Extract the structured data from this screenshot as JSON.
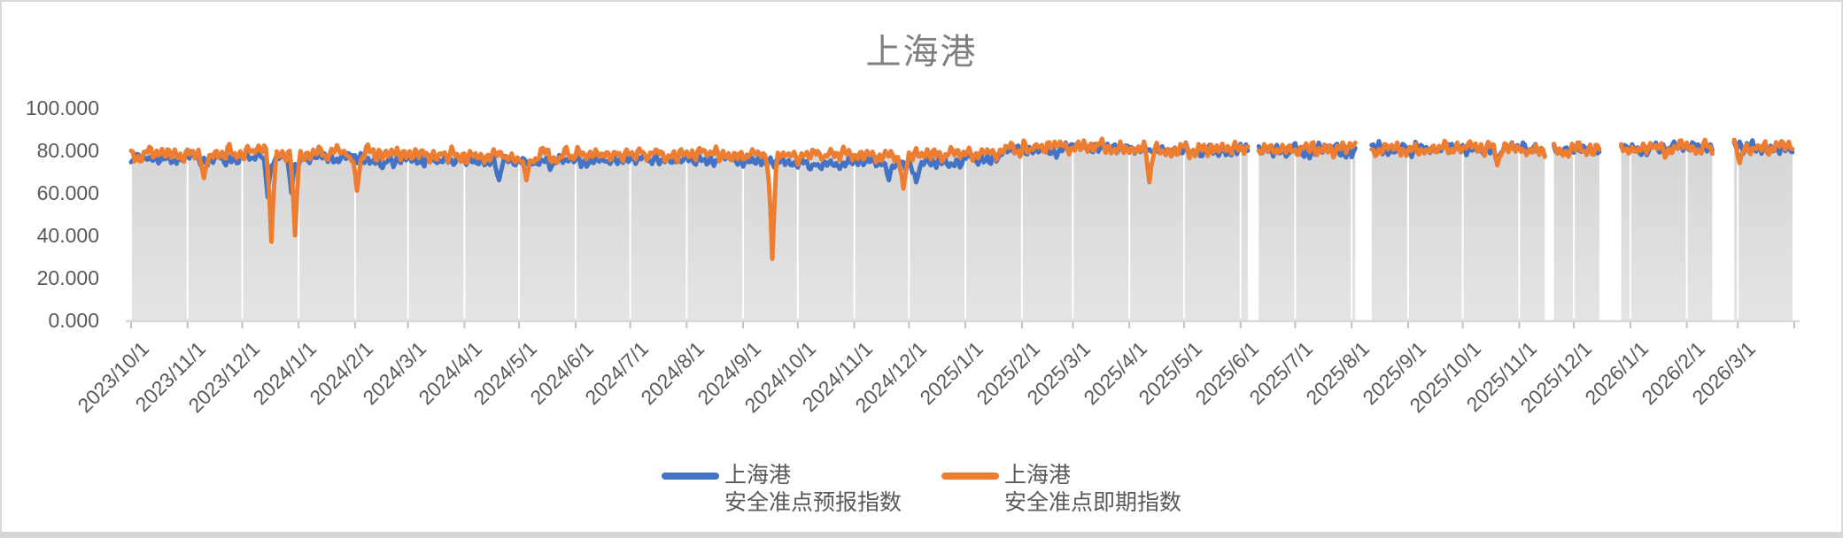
{
  "chart_data": {
    "type": "line",
    "title": "上海港",
    "ylim": [
      0,
      100
    ],
    "yticks": [
      0,
      20,
      40,
      60,
      80,
      100
    ],
    "ytick_labels": [
      "0.000",
      "20.000",
      "40.000",
      "60.000",
      "80.000",
      "100.000"
    ],
    "x_start": "2023-10-01",
    "x_end": "2026-04-01",
    "xtick_labels": [
      "2023/10/1",
      "2023/11/1",
      "2023/12/1",
      "2024/1/1",
      "2024/2/1",
      "2024/3/1",
      "2024/4/1",
      "2024/5/1",
      "2024/6/1",
      "2024/7/1",
      "2024/8/1",
      "2024/9/1",
      "2024/10/1",
      "2024/11/1",
      "2024/12/1",
      "2025/1/1",
      "2025/2/1",
      "2025/3/1",
      "2025/4/1",
      "2025/5/1",
      "2025/6/1",
      "2025/7/1",
      "2025/8/1",
      "2025/9/1",
      "2025/10/1",
      "2025/11/1",
      "2025/12/1",
      "2026/1/1",
      "2026/2/1",
      "2026/3/1"
    ],
    "grid": {
      "vertical": true,
      "horizontal": false,
      "gridline_color": "#ffffff"
    },
    "area_fill_top": "#d5d5d5",
    "area_fill_bottom": "#e4e4e4",
    "axis_line_color": "#d9d9d9",
    "axis_tick_color": "#bfbfbf",
    "legend_position": "bottom",
    "gaps": [
      [
        "2025-06-06",
        "2025-06-10"
      ],
      [
        "2025-08-04",
        "2025-08-11"
      ],
      [
        "2025-11-16",
        "2025-11-19"
      ],
      [
        "2025-12-16",
        "2025-12-26"
      ],
      [
        "2026-02-16",
        "2026-02-26"
      ]
    ],
    "series": [
      {
        "name": "上海港 安全准点预报指数",
        "legend_lines": [
          "上海港",
          "安全准点预报指数"
        ],
        "color": "#4472C4",
        "noise_amp": 3.0,
        "seed": 7,
        "trend": [
          [
            "2023-10-01",
            76.5
          ],
          [
            "2023-12-10",
            76.0
          ],
          [
            "2024-01-20",
            76.0
          ],
          [
            "2024-03-15",
            75.0
          ],
          [
            "2024-05-10",
            74.0
          ],
          [
            "2024-07-01",
            76.0
          ],
          [
            "2024-08-20",
            75.5
          ],
          [
            "2024-10-10",
            73.5
          ],
          [
            "2024-12-20",
            74.0
          ],
          [
            "2025-02-10",
            80.5
          ],
          [
            "2025-04-01",
            80.5
          ],
          [
            "2025-06-20",
            79.5
          ],
          [
            "2025-08-25",
            80.5
          ],
          [
            "2025-10-05",
            81.5
          ],
          [
            "2025-11-10",
            80.0
          ],
          [
            "2026-01-10",
            81.0
          ],
          [
            "2026-03-31",
            81.5
          ]
        ],
        "dips": [
          [
            "2023-12-15",
            58
          ],
          [
            "2023-12-28",
            60
          ],
          [
            "2024-04-20",
            66
          ],
          [
            "2024-11-20",
            66
          ],
          [
            "2024-12-05",
            65
          ],
          [
            "2025-10-20",
            74
          ]
        ]
      },
      {
        "name": "上海港 安全准点即期指数",
        "legend_lines": [
          "上海港",
          "安全准点即期指数"
        ],
        "color": "#ED7D31",
        "noise_amp": 3.4,
        "seed": 13,
        "trend": [
          [
            "2023-10-01",
            79.0
          ],
          [
            "2023-12-05",
            79.0
          ],
          [
            "2024-01-25",
            78.5
          ],
          [
            "2024-03-20",
            77.5
          ],
          [
            "2024-05-10",
            77.0
          ],
          [
            "2024-07-05",
            78.5
          ],
          [
            "2024-09-10",
            78.0
          ],
          [
            "2024-11-10",
            77.5
          ],
          [
            "2024-12-25",
            78.0
          ],
          [
            "2025-02-10",
            82.0
          ],
          [
            "2025-04-05",
            81.0
          ],
          [
            "2025-06-15",
            80.0
          ],
          [
            "2025-08-25",
            80.5
          ],
          [
            "2025-10-01",
            81.5
          ],
          [
            "2025-11-05",
            80.0
          ],
          [
            "2026-01-10",
            81.0
          ],
          [
            "2026-03-31",
            82.0
          ]
        ],
        "dips": [
          [
            "2023-11-10",
            67
          ],
          [
            "2023-12-17",
            37
          ],
          [
            "2023-12-30",
            40
          ],
          [
            "2024-02-02",
            61
          ],
          [
            "2024-05-05",
            66
          ],
          [
            "2024-09-17",
            29
          ],
          [
            "2024-11-28",
            62
          ],
          [
            "2025-04-12",
            65
          ],
          [
            "2025-10-20",
            73
          ],
          [
            "2026-03-02",
            74
          ]
        ]
      }
    ]
  },
  "legend": {
    "items": [
      {
        "line1": "上海港",
        "line2": "安全准点预报指数"
      },
      {
        "line1": "上海港",
        "line2": "安全准点即期指数"
      }
    ]
  }
}
